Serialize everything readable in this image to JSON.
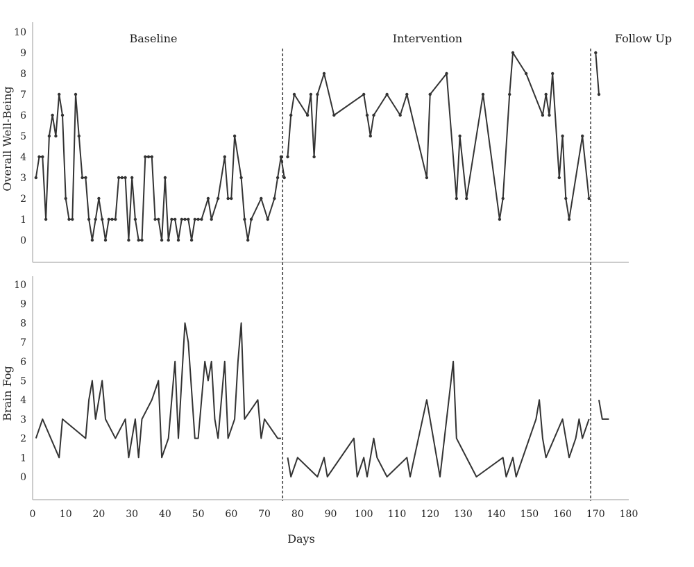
{
  "chart_data": {
    "type": "line",
    "xlabel": "Days",
    "x_ticks": [
      0,
      10,
      20,
      30,
      40,
      50,
      60,
      70,
      80,
      90,
      100,
      110,
      120,
      130,
      140,
      150,
      160,
      170,
      180
    ],
    "xlim": [
      0,
      180
    ],
    "phase_boundaries": [
      75.5,
      168.5
    ],
    "phases": [
      "Baseline",
      "Intervention",
      "Follow Up"
    ],
    "panels": [
      {
        "ylabel": "Overall Well-Being",
        "ylim": [
          -1,
          10
        ],
        "y_ticks": [
          0,
          1,
          2,
          3,
          4,
          5,
          6,
          7,
          8,
          9,
          10
        ],
        "markers": true,
        "segments": [
          {
            "phase": "Baseline",
            "points": [
              [
                1,
                3
              ],
              [
                2,
                4
              ],
              [
                3,
                4
              ],
              [
                4,
                1
              ],
              [
                5,
                5
              ],
              [
                6,
                6
              ],
              [
                7,
                5
              ],
              [
                8,
                7
              ],
              [
                9,
                6
              ],
              [
                10,
                2
              ],
              [
                11,
                1
              ],
              [
                12,
                1
              ],
              [
                13,
                7
              ],
              [
                14,
                5
              ],
              [
                15,
                3
              ],
              [
                16,
                3
              ],
              [
                17,
                1
              ],
              [
                18,
                0
              ],
              [
                19,
                1
              ],
              [
                20,
                2
              ],
              [
                21,
                1
              ],
              [
                22,
                0
              ],
              [
                23,
                1
              ],
              [
                24,
                1
              ],
              [
                25,
                1
              ],
              [
                26,
                3
              ],
              [
                27,
                3
              ],
              [
                28,
                3
              ],
              [
                29,
                0
              ],
              [
                30,
                3
              ],
              [
                31,
                1
              ],
              [
                32,
                0
              ],
              [
                33,
                0
              ],
              [
                34,
                4
              ],
              [
                35,
                4
              ],
              [
                36,
                4
              ],
              [
                37,
                1
              ],
              [
                38,
                1
              ],
              [
                39,
                0
              ],
              [
                40,
                3
              ],
              [
                41,
                0
              ],
              [
                42,
                1
              ],
              [
                43,
                1
              ],
              [
                44,
                0
              ],
              [
                45,
                1
              ],
              [
                46,
                1
              ],
              [
                47,
                1
              ],
              [
                48,
                0
              ],
              [
                49,
                1
              ],
              [
                50,
                1
              ],
              [
                51,
                1
              ],
              [
                53,
                2
              ],
              [
                54,
                1
              ],
              [
                56,
                2
              ],
              [
                58,
                4
              ],
              [
                59,
                2
              ],
              [
                60,
                2
              ],
              [
                61,
                5
              ],
              [
                63,
                3
              ],
              [
                64,
                1
              ],
              [
                65,
                0
              ],
              [
                66,
                1
              ],
              [
                69,
                2
              ],
              [
                71,
                1
              ],
              [
                73,
                2
              ],
              [
                74,
                3
              ],
              [
                75,
                4
              ],
              [
                76,
                3
              ]
            ]
          },
          {
            "phase": "Intervention",
            "points": [
              [
                77,
                4
              ],
              [
                78,
                6
              ],
              [
                79,
                7
              ],
              [
                83,
                6
              ],
              [
                84,
                7
              ],
              [
                85,
                4
              ],
              [
                86,
                7
              ],
              [
                88,
                8
              ],
              [
                91,
                6
              ],
              [
                100,
                7
              ],
              [
                101,
                6
              ],
              [
                102,
                5
              ],
              [
                103,
                6
              ],
              [
                107,
                7
              ],
              [
                111,
                6
              ],
              [
                113,
                7
              ],
              [
                119,
                3
              ],
              [
                120,
                7
              ],
              [
                125,
                8
              ],
              [
                128,
                2
              ],
              [
                129,
                5
              ],
              [
                131,
                2
              ],
              [
                136,
                7
              ],
              [
                141,
                1
              ],
              [
                142,
                2
              ],
              [
                144,
                7
              ],
              [
                145,
                9
              ],
              [
                149,
                8
              ],
              [
                154,
                6
              ],
              [
                155,
                7
              ],
              [
                156,
                6
              ],
              [
                157,
                8
              ],
              [
                159,
                3
              ],
              [
                160,
                5
              ],
              [
                161,
                2
              ],
              [
                162,
                1
              ],
              [
                166,
                5
              ],
              [
                168,
                2
              ]
            ]
          },
          {
            "phase": "Follow Up",
            "points": [
              [
                170,
                9
              ],
              [
                171,
                7
              ]
            ]
          }
        ]
      },
      {
        "ylabel": "Brain Fog",
        "ylim": [
          -1,
          10
        ],
        "y_ticks": [
          0,
          1,
          2,
          3,
          4,
          5,
          6,
          7,
          8,
          9,
          10
        ],
        "markers": false,
        "segments": [
          {
            "phase": "Baseline",
            "points": [
              [
                1,
                2
              ],
              [
                3,
                3
              ],
              [
                8,
                1
              ],
              [
                9,
                3
              ],
              [
                16,
                2
              ],
              [
                17,
                4
              ],
              [
                18,
                5
              ],
              [
                19,
                3
              ],
              [
                21,
                5
              ],
              [
                22,
                3
              ],
              [
                25,
                2
              ],
              [
                28,
                3
              ],
              [
                29,
                1
              ],
              [
                31,
                3
              ],
              [
                32,
                1
              ],
              [
                33,
                3
              ],
              [
                36,
                4
              ],
              [
                38,
                5
              ],
              [
                39,
                1
              ],
              [
                41,
                2
              ],
              [
                42,
                4
              ],
              [
                43,
                6
              ],
              [
                44,
                2
              ],
              [
                46,
                8
              ],
              [
                47,
                7
              ],
              [
                49,
                2
              ],
              [
                50,
                2
              ],
              [
                51,
                4
              ],
              [
                52,
                6
              ],
              [
                53,
                5
              ],
              [
                54,
                6
              ],
              [
                55,
                3
              ],
              [
                56,
                2
              ],
              [
                58,
                6
              ],
              [
                59,
                2
              ],
              [
                61,
                3
              ],
              [
                62,
                6
              ],
              [
                63,
                8
              ],
              [
                64,
                3
              ],
              [
                68,
                4
              ],
              [
                69,
                2
              ],
              [
                70,
                3
              ],
              [
                74,
                2
              ],
              [
                75,
                2
              ]
            ]
          },
          {
            "phase": "Intervention",
            "points": [
              [
                77,
                1
              ],
              [
                78,
                0
              ],
              [
                80,
                1
              ],
              [
                86,
                0
              ],
              [
                88,
                1
              ],
              [
                89,
                0
              ],
              [
                97,
                2
              ],
              [
                98,
                0
              ],
              [
                100,
                1
              ],
              [
                101,
                0
              ],
              [
                103,
                2
              ],
              [
                104,
                1
              ],
              [
                107,
                0
              ],
              [
                113,
                1
              ],
              [
                114,
                0
              ],
              [
                119,
                4
              ],
              [
                123,
                0
              ],
              [
                127,
                6
              ],
              [
                128,
                2
              ],
              [
                134,
                0
              ],
              [
                142,
                1
              ],
              [
                143,
                0
              ],
              [
                145,
                1
              ],
              [
                146,
                0
              ],
              [
                152,
                3
              ],
              [
                153,
                4
              ],
              [
                154,
                2
              ],
              [
                155,
                1
              ],
              [
                160,
                3
              ],
              [
                161,
                2
              ],
              [
                162,
                1
              ],
              [
                164,
                2
              ],
              [
                165,
                3
              ],
              [
                166,
                2
              ],
              [
                168,
                3
              ]
            ]
          },
          {
            "phase": "Follow Up",
            "points": [
              [
                171,
                4
              ],
              [
                172,
                3
              ],
              [
                174,
                3
              ]
            ]
          }
        ]
      }
    ]
  }
}
